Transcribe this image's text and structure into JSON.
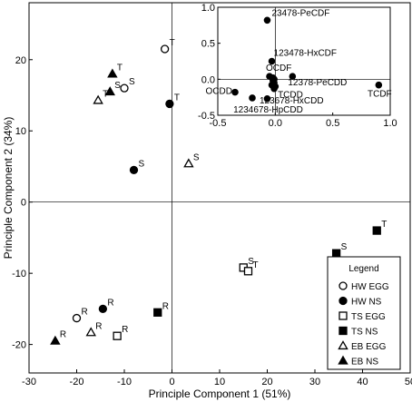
{
  "chart_data": [
    {
      "type": "scatter",
      "xlabel": "Principle Component 1 (51%)",
      "ylabel": "Principle Component 2 (34%)",
      "xlim": [
        -30,
        50
      ],
      "ylim": [
        -24,
        28
      ],
      "xticks": [
        -30,
        -20,
        -10,
        0,
        10,
        20,
        30,
        40,
        50
      ],
      "yticks": [
        -20,
        -10,
        0,
        10,
        20
      ],
      "legend": {
        "title": "Legend",
        "placement": "bottom-right",
        "entries": [
          {
            "label": "HW EGG",
            "marker": "circle-open"
          },
          {
            "label": "HW NS",
            "marker": "circle-filled"
          },
          {
            "label": "TS EGG",
            "marker": "square-open"
          },
          {
            "label": "TS NS",
            "marker": "square-filled"
          },
          {
            "label": "EB EGG",
            "marker": "triangle-open"
          },
          {
            "label": "EB NS",
            "marker": "triangle-filled"
          }
        ]
      },
      "series": [
        {
          "name": "HW EGG",
          "marker": "circle-open",
          "points": [
            {
              "x": -1.5,
              "y": 21.5,
              "label": "T"
            },
            {
              "x": -10,
              "y": 16,
              "label": "S"
            },
            {
              "x": -20,
              "y": -16.3,
              "label": "R"
            }
          ]
        },
        {
          "name": "HW NS",
          "marker": "circle-filled",
          "points": [
            {
              "x": -0.5,
              "y": 13.8,
              "label": "T"
            },
            {
              "x": -8,
              "y": 4.5,
              "label": "S"
            },
            {
              "x": -14.5,
              "y": -15,
              "label": "R"
            }
          ]
        },
        {
          "name": "TS EGG",
          "marker": "square-open",
          "points": [
            {
              "x": 15,
              "y": -9.2,
              "label": "S"
            },
            {
              "x": 16,
              "y": -9.7,
              "label": "T"
            },
            {
              "x": -11.5,
              "y": -18.8,
              "label": "R"
            }
          ]
        },
        {
          "name": "TS NS",
          "marker": "square-filled",
          "points": [
            {
              "x": 43,
              "y": -4,
              "label": "T"
            },
            {
              "x": 34.5,
              "y": -7.2,
              "label": "S"
            },
            {
              "x": -3,
              "y": -15.5,
              "label": "R"
            }
          ]
        },
        {
          "name": "EB EGG",
          "marker": "triangle-open",
          "points": [
            {
              "x": -15.5,
              "y": 14.3,
              "label": "T"
            },
            {
              "x": 3.5,
              "y": 5.4,
              "label": "S"
            },
            {
              "x": -17,
              "y": -18.3,
              "label": "R"
            }
          ]
        },
        {
          "name": "EB NS",
          "marker": "triangle-filled",
          "points": [
            {
              "x": -12.5,
              "y": 18,
              "label": "T"
            },
            {
              "x": -13,
              "y": 15.5,
              "label": "S"
            },
            {
              "x": -24.5,
              "y": -19.5,
              "label": "R"
            }
          ]
        }
      ]
    },
    {
      "type": "scatter",
      "inset": true,
      "xlim": [
        -0.5,
        1.0
      ],
      "ylim": [
        -0.5,
        1.0
      ],
      "xticks": [
        -0.5,
        0.0,
        0.5,
        1.0
      ],
      "yticks": [
        -0.5,
        0.0,
        0.5,
        1.0
      ],
      "xtick_labels": [
        "-0.5",
        "0.0",
        "0.5",
        "1.0"
      ],
      "ytick_labels": [
        "-0.5",
        "0.0",
        "0.5",
        "1.0"
      ],
      "points": [
        {
          "x": -0.07,
          "y": 0.82,
          "label": "23478-PeCDF"
        },
        {
          "x": -0.03,
          "y": 0.25,
          "label": "123478-HxCDF"
        },
        {
          "x": -0.05,
          "y": 0.04,
          "label": "OCDF"
        },
        {
          "x": -0.02,
          "y": 0.02,
          "label": ""
        },
        {
          "x": -0.01,
          "y": 0.0,
          "label": ""
        },
        {
          "x": -0.02,
          "y": -0.02,
          "label": ""
        },
        {
          "x": -0.01,
          "y": -0.05,
          "label": ""
        },
        {
          "x": -0.03,
          "y": -0.08,
          "label": ""
        },
        {
          "x": 0.0,
          "y": -0.1,
          "label": ""
        },
        {
          "x": 0.15,
          "y": 0.04,
          "label": "12378-PeCDD"
        },
        {
          "x": -0.01,
          "y": -0.13,
          "label": "TCDD"
        },
        {
          "x": -0.2,
          "y": -0.26,
          "label": "123678-HxCDD"
        },
        {
          "x": -0.07,
          "y": -0.27,
          "label": "1234678-HpCDD"
        },
        {
          "x": -0.35,
          "y": -0.18,
          "label": "OCDD"
        },
        {
          "x": 0.9,
          "y": -0.08,
          "label": "TCDF"
        }
      ]
    }
  ]
}
